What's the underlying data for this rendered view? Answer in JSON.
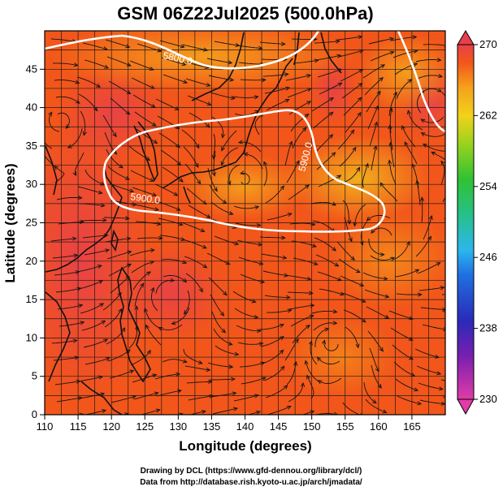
{
  "figure": {
    "title": "GSM 06Z22Jul2025 (500.0hPa)",
    "xlabel": "Longitude (degrees)",
    "ylabel": "Latitude  (degrees)",
    "credit_line1": "Drawing by DCL (https://www.gfd-dennou.org/library/dcl/)",
    "credit_line2": "Data from http://database.rish.kyoto-u.ac.jp/arch/jmadata/"
  },
  "chart_data": {
    "type": "heatmap",
    "title": "GSM 06Z22Jul2025 (500.0hPa)",
    "xlabel": "Longitude (degrees)",
    "ylabel": "Latitude  (degrees)",
    "xlim": [
      110,
      170
    ],
    "ylim": [
      0,
      50
    ],
    "x_ticks": [
      "110",
      "115",
      "120",
      "125",
      "130",
      "135",
      "140",
      "145",
      "150",
      "155",
      "160",
      "165"
    ],
    "y_ticks": [
      "0",
      "5",
      "10",
      "15",
      "20",
      "25",
      "30",
      "35",
      "40",
      "45"
    ],
    "colorbar": {
      "min": 230,
      "max": 270,
      "tick_labels": [
        "230",
        "238",
        "246",
        "254",
        "262",
        "270"
      ]
    },
    "contours": [
      {
        "label": "5800.0",
        "level": 5800
      },
      {
        "label": "5900.0",
        "level": 5900
      }
    ],
    "overlays": [
      "wind streamlines",
      "coastlines",
      "grid lines"
    ]
  },
  "colors": {
    "warm_high": "#e8404a",
    "warm_mid": "#f2561a",
    "orange": "#f58a1e",
    "yellow_orange": "#f2b21e",
    "contour": "#ffffff",
    "streamline": "#141414"
  }
}
